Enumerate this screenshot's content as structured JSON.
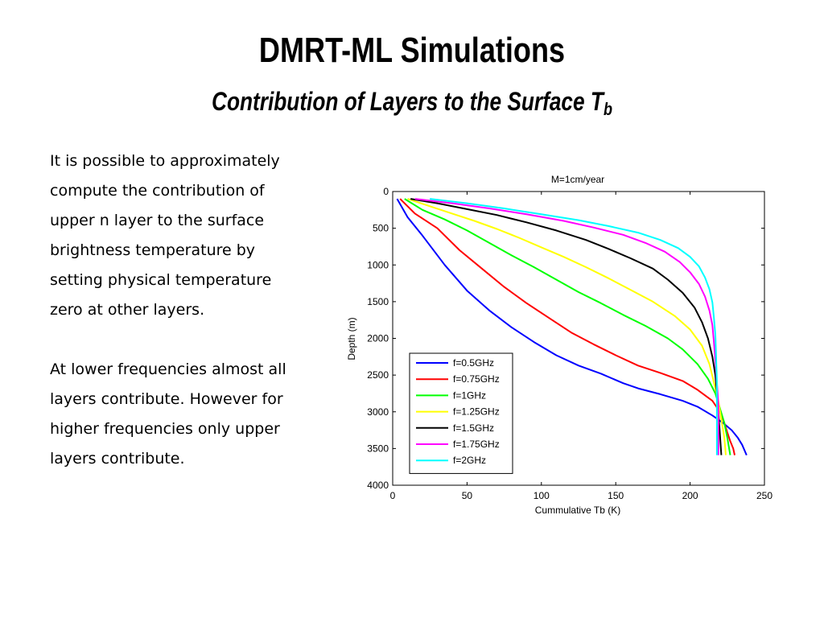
{
  "slide": {
    "title": "DMRT-ML Simulations",
    "subtitle_main": "Contribution of Layers to the Surface T",
    "subtitle_sub": "b",
    "paragraphs": [
      "It is possible to approximately\ncompute the contribution of\nupper n layer to the surface\nbrightness temperature by\nsetting physical temperature\nzero at other layers.",
      "At lower frequencies almost all\nlayers contribute. However for\nhigher frequencies only upper\nlayers contribute."
    ]
  },
  "chart_data": {
    "type": "line",
    "title": "M=1cm/year",
    "xlabel": "Cummulative Tb (K)",
    "ylabel": "Depth (m)",
    "xlim": [
      0,
      250
    ],
    "ylim": [
      0,
      4000
    ],
    "y_reversed": true,
    "xticks": [
      "0",
      "50",
      "100",
      "150",
      "200",
      "250"
    ],
    "yticks": [
      "0",
      "500",
      "1000",
      "1500",
      "2000",
      "2500",
      "3000",
      "3500",
      "4000"
    ],
    "grid": false,
    "legend_position": "lower-left",
    "series": [
      {
        "name": "f=0.5GHz",
        "color": "#0000ff",
        "x": [
          3,
          10,
          20,
          35,
          50,
          65,
          80,
          95,
          110,
          125,
          140,
          155,
          165,
          180,
          195,
          205,
          215,
          222,
          228,
          232,
          235,
          238
        ],
        "y": [
          100,
          350,
          600,
          1000,
          1350,
          1620,
          1850,
          2050,
          2230,
          2370,
          2480,
          2610,
          2680,
          2760,
          2850,
          2930,
          3050,
          3150,
          3250,
          3350,
          3450,
          3590
        ]
      },
      {
        "name": "f=0.75GHz",
        "color": "#ff0000",
        "x": [
          5,
          15,
          30,
          45,
          60,
          75,
          90,
          105,
          120,
          135,
          150,
          165,
          180,
          195,
          205,
          215,
          220,
          223,
          225,
          227,
          229,
          230
        ],
        "y": [
          100,
          300,
          500,
          800,
          1050,
          1300,
          1520,
          1720,
          1920,
          2080,
          2230,
          2370,
          2470,
          2580,
          2700,
          2850,
          3000,
          3150,
          3280,
          3400,
          3500,
          3590
        ]
      },
      {
        "name": "f=1GHz",
        "color": "#00ff00",
        "x": [
          8,
          20,
          35,
          50,
          65,
          80,
          95,
          110,
          125,
          140,
          155,
          170,
          185,
          195,
          205,
          212,
          217,
          220,
          223,
          225,
          227
        ],
        "y": [
          100,
          250,
          380,
          530,
          700,
          870,
          1030,
          1200,
          1370,
          1520,
          1680,
          1830,
          2000,
          2150,
          2350,
          2550,
          2750,
          2950,
          3150,
          3350,
          3590
        ]
      },
      {
        "name": "f=1.25GHz",
        "color": "#ffff00",
        "x": [
          10,
          25,
          40,
          55,
          70,
          85,
          100,
          115,
          130,
          145,
          160,
          175,
          190,
          200,
          208,
          213,
          216,
          219,
          221,
          223,
          224
        ],
        "y": [
          100,
          200,
          300,
          400,
          510,
          630,
          760,
          890,
          1030,
          1180,
          1340,
          1500,
          1700,
          1880,
          2100,
          2350,
          2600,
          2850,
          3100,
          3350,
          3590
        ]
      },
      {
        "name": "f=1.5GHz",
        "color": "#000000",
        "x": [
          12,
          30,
          50,
          70,
          90,
          110,
          130,
          145,
          160,
          175,
          185,
          195,
          203,
          208,
          212,
          215,
          217,
          218,
          219,
          220,
          221
        ],
        "y": [
          100,
          160,
          240,
          320,
          420,
          530,
          660,
          780,
          910,
          1050,
          1200,
          1380,
          1580,
          1780,
          2000,
          2250,
          2500,
          2750,
          3000,
          3300,
          3590
        ]
      },
      {
        "name": "f=1.75GHz",
        "color": "#ff00ff",
        "x": [
          15,
          40,
          65,
          90,
          115,
          135,
          155,
          170,
          183,
          193,
          200,
          206,
          210,
          213,
          215,
          216,
          217,
          218,
          219,
          219,
          219
        ],
        "y": [
          100,
          160,
          230,
          310,
          400,
          490,
          590,
          700,
          820,
          960,
          1100,
          1260,
          1430,
          1620,
          1820,
          2050,
          2300,
          2600,
          2900,
          3250,
          3590
        ]
      },
      {
        "name": "f=2GHz",
        "color": "#00ffff",
        "x": [
          25,
          50,
          75,
          100,
          125,
          145,
          165,
          180,
          192,
          200,
          206,
          210,
          213,
          215,
          216,
          217,
          217.5,
          218,
          218,
          218
        ],
        "y": [
          100,
          160,
          230,
          310,
          390,
          470,
          560,
          660,
          770,
          890,
          1020,
          1170,
          1330,
          1510,
          1720,
          1950,
          2250,
          2600,
          3000,
          3590
        ]
      }
    ]
  }
}
